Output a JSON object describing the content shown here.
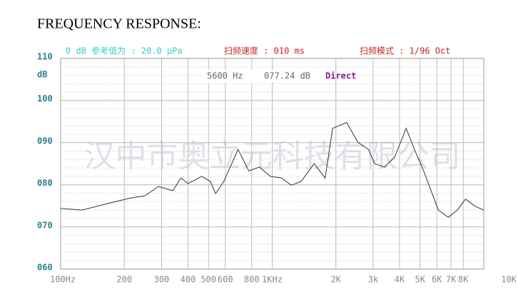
{
  "chart_data": {
    "type": "line",
    "title": "FREQUENCY RESPONSE:",
    "header": {
      "reference": "0 dB 参考值为 : 20.0 μPa",
      "sweep_speed": "扫频速度 : 010 ms",
      "sweep_mode": "扫频模式 : 1/96 Oct"
    },
    "y_label": "dB",
    "cursor": {
      "frequency": "5600 Hz",
      "level": "077.24 dB",
      "mode": "Direct"
    },
    "watermark": "汉中市奥立元科技有限公司",
    "x": [
      100,
      126,
      171,
      215,
      250,
      290,
      339,
      370,
      400,
      465,
      510,
      540,
      590,
      690,
      775,
      870,
      980,
      1110,
      1230,
      1370,
      1580,
      1780,
      1930,
      2250,
      2540,
      2850,
      3050,
      3400,
      3800,
      4300,
      4700,
      5200,
      6100,
      6800,
      7500,
      8200,
      9100,
      10000
    ],
    "series": [
      {
        "color": "#333333",
        "values": [
          74.4,
          74.0,
          75.7,
          76.9,
          77.4,
          79.6,
          78.6,
          81.6,
          80.3,
          82.0,
          80.8,
          77.9,
          80.8,
          88.4,
          83.3,
          84.2,
          82.0,
          81.6,
          79.9,
          80.8,
          85.0,
          81.6,
          93.4,
          94.8,
          90.1,
          88.4,
          85.0,
          84.2,
          86.7,
          93.4,
          88.4,
          83.3,
          74.0,
          72.3,
          74.0,
          76.6,
          74.9,
          74.0
        ]
      }
    ],
    "xscale": "log",
    "xlim": [
      100,
      10000
    ],
    "xticks": [
      {
        "value": 100,
        "label": "100Hz"
      },
      200,
      300,
      400,
      500,
      600,
      800,
      {
        "value": 1000,
        "label": "1KHz"
      },
      {
        "value": 2000,
        "label": "2K"
      },
      {
        "value": 3000,
        "label": "3k"
      },
      {
        "value": 4000,
        "label": "4K"
      },
      {
        "value": 5000,
        "label": "5K"
      },
      {
        "value": 6000,
        "label": "6K"
      },
      {
        "value": 7000,
        "label": "7K"
      },
      {
        "value": 8000,
        "label": "8K"
      },
      {
        "value": 10000,
        "label": "10K"
      }
    ],
    "ylim": [
      60,
      110
    ],
    "yticks": [
      {
        "value": 60,
        "label": "060"
      },
      {
        "value": 70,
        "label": "070"
      },
      {
        "value": 80,
        "label": "080"
      },
      {
        "value": 90,
        "label": "090"
      },
      100,
      110
    ],
    "grid": true
  }
}
